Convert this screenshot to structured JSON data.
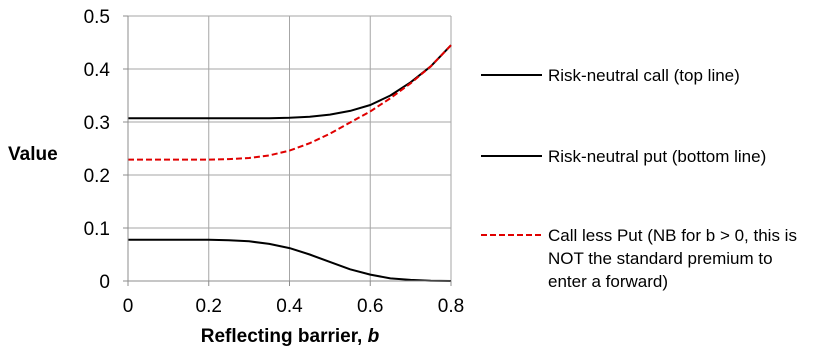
{
  "chart_data": {
    "type": "line",
    "title": "",
    "xlabel": "Reflecting barrier, ",
    "xlabel_italic": "b",
    "ylabel": "Value",
    "xlim": [
      0,
      0.8
    ],
    "ylim": [
      0,
      0.5
    ],
    "x_ticks": [
      "0",
      "0.2",
      "0.4",
      "0.6",
      "0.8"
    ],
    "y_ticks": [
      "0",
      "0.1",
      "0.2",
      "0.3",
      "0.4",
      "0.5"
    ],
    "grid": true,
    "legend_position": "right",
    "x": [
      0,
      0.05,
      0.1,
      0.15,
      0.2,
      0.25,
      0.3,
      0.35,
      0.4,
      0.45,
      0.5,
      0.55,
      0.6,
      0.65,
      0.7,
      0.75,
      0.8
    ],
    "series": [
      {
        "name": "Risk-neutral call (top line)",
        "color": "#000000",
        "style": "solid",
        "values": [
          0.307,
          0.307,
          0.307,
          0.307,
          0.307,
          0.307,
          0.307,
          0.307,
          0.308,
          0.31,
          0.314,
          0.321,
          0.332,
          0.35,
          0.375,
          0.405,
          0.445
        ]
      },
      {
        "name": "Risk-neutral put (bottom line)",
        "color": "#000000",
        "style": "solid",
        "values": [
          0.078,
          0.078,
          0.078,
          0.078,
          0.078,
          0.077,
          0.075,
          0.07,
          0.062,
          0.05,
          0.036,
          0.022,
          0.012,
          0.005,
          0.002,
          0.0005,
          0.0
        ]
      },
      {
        "name": "Call less Put (NB for b > 0, this is NOT the standard premium to enter a forward)",
        "legend_lines": [
          "Call less Put (NB for b > 0, this is",
          "NOT the standard premium to",
          "enter a forward)"
        ],
        "color": "#e00000",
        "style": "dashed",
        "values": [
          0.229,
          0.229,
          0.229,
          0.229,
          0.229,
          0.23,
          0.232,
          0.237,
          0.246,
          0.26,
          0.278,
          0.299,
          0.32,
          0.345,
          0.373,
          0.405,
          0.445
        ]
      }
    ]
  }
}
